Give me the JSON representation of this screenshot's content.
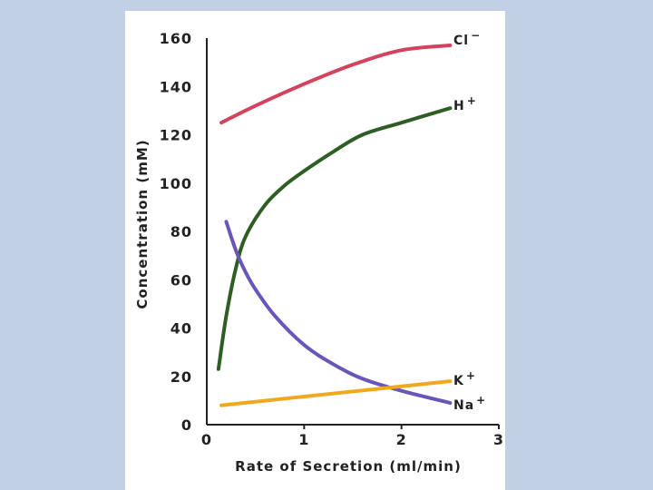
{
  "chart_data": {
    "type": "line",
    "xlabel": "Rate of Secretion (ml/min)",
    "ylabel": "Concentration (mM)",
    "xlim": [
      0,
      3
    ],
    "ylim": [
      0,
      160
    ],
    "x_ticks": [
      "0",
      "1",
      "2",
      "3"
    ],
    "y_ticks": [
      "0",
      "20",
      "40",
      "60",
      "80",
      "100",
      "120",
      "140",
      "160"
    ],
    "grid": false,
    "series": [
      {
        "name": "Cl",
        "charge": "−",
        "color": "#d4435e",
        "x": [
          0.15,
          0.5,
          1.0,
          1.5,
          2.0,
          2.5
        ],
        "y": [
          125,
          132,
          141,
          149,
          155,
          157
        ]
      },
      {
        "name": "H",
        "charge": "+",
        "color": "#2f5e25",
        "x": [
          0.12,
          0.2,
          0.3,
          0.4,
          0.6,
          0.8,
          1.0,
          1.3,
          1.6,
          2.0,
          2.5
        ],
        "y": [
          23,
          45,
          65,
          78,
          91,
          99,
          105,
          113,
          120,
          125,
          131
        ]
      },
      {
        "name": "Na",
        "charge": "+",
        "color": "#6a55b8",
        "x": [
          0.2,
          0.3,
          0.4,
          0.5,
          0.7,
          1.0,
          1.3,
          1.6,
          2.0,
          2.5
        ],
        "y": [
          84,
          72,
          63,
          56,
          45,
          33,
          25,
          19,
          14,
          9
        ]
      },
      {
        "name": "K",
        "charge": "+",
        "color": "#f0a91f",
        "x": [
          0.15,
          2.5
        ],
        "y": [
          8,
          18
        ]
      }
    ]
  }
}
